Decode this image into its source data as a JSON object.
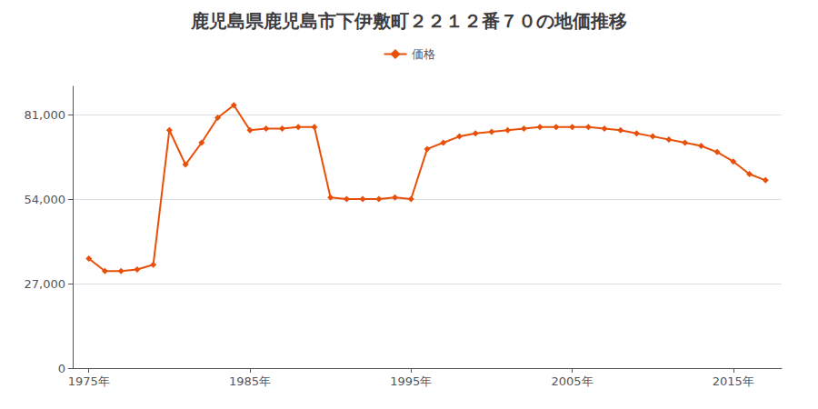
{
  "chart_data": {
    "type": "line",
    "title": "鹿児島県鹿児島市下伊敷町２２１２番７０の地価推移",
    "x": [
      1975,
      1976,
      1977,
      1978,
      1979,
      1980,
      1981,
      1982,
      1983,
      1984,
      1985,
      1986,
      1987,
      1988,
      1989,
      1990,
      1991,
      1992,
      1993,
      1994,
      1995,
      1996,
      1997,
      1998,
      1999,
      2000,
      2001,
      2002,
      2003,
      2004,
      2005,
      2006,
      2007,
      2008,
      2009,
      2010,
      2011,
      2012,
      2013,
      2014,
      2015,
      2016,
      2017
    ],
    "series": [
      {
        "name": "価格",
        "color": "#e8500a",
        "marker": "diamond",
        "values": [
          35000,
          31000,
          31000,
          31500,
          33000,
          76000,
          65000,
          72000,
          80000,
          84000,
          76000,
          76500,
          76500,
          77000,
          77000,
          54500,
          54000,
          54000,
          54000,
          54500,
          54000,
          70000,
          72000,
          74000,
          75000,
          75500,
          76000,
          76500,
          77000,
          77000,
          77000,
          77000,
          76500,
          76000,
          75000,
          74000,
          73000,
          72000,
          71000,
          69000,
          66000,
          62000,
          60000
        ]
      }
    ],
    "xlim": [
      1974,
      2018
    ],
    "xticks": [
      {
        "value": 1975,
        "label": "1975年"
      },
      {
        "value": 1985,
        "label": "1985年"
      },
      {
        "value": 1995,
        "label": "1995年"
      },
      {
        "value": 2005,
        "label": "2005年"
      },
      {
        "value": 2015,
        "label": "2015年"
      }
    ],
    "ylim": [
      0,
      90000
    ],
    "yticks": [
      0,
      {
        "value": 27000,
        "label": "27,000"
      },
      {
        "value": 54000,
        "label": "54,000"
      },
      {
        "value": 81000,
        "label": "81,000"
      }
    ],
    "grid": true,
    "legend": "top"
  }
}
